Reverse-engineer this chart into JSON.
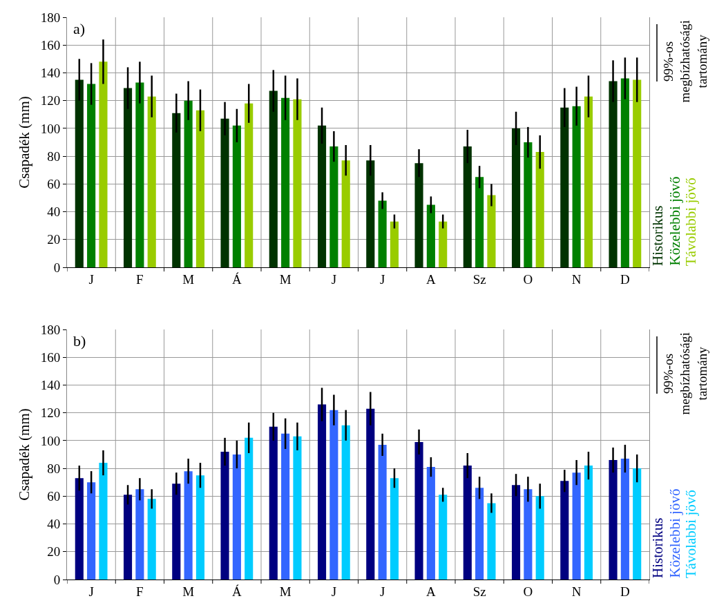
{
  "chart_data": [
    {
      "type": "bar",
      "ylabel": "Csapadék (mm)",
      "categories": [
        "J",
        "F",
        "M",
        "Á",
        "M",
        "J",
        "J",
        "A",
        "Sz",
        "O",
        "N",
        "D"
      ],
      "ylim": [
        0,
        180
      ],
      "yticks": [
        0,
        20,
        40,
        60,
        80,
        100,
        120,
        140,
        160,
        180
      ],
      "grid": true,
      "legend": "right",
      "annotations": [
        "a)",
        "99%-os megbízhatósági tartomány"
      ],
      "series": [
        {
          "name": "Historikus",
          "color": "#003300",
          "values": [
            135,
            129,
            111,
            107,
            127,
            102,
            77,
            75,
            87,
            100,
            115,
            134
          ],
          "errors": [
            15,
            15,
            14,
            12,
            15,
            13,
            11,
            10,
            12,
            12,
            14,
            15
          ]
        },
        {
          "name": "Közelebbi jövő",
          "color": "#008000",
          "values": [
            132,
            133,
            120,
            102,
            122,
            87,
            48,
            45,
            65,
            90,
            116,
            136
          ],
          "errors": [
            15,
            15,
            14,
            12,
            16,
            11,
            6,
            6,
            8,
            11,
            14,
            15
          ]
        },
        {
          "name": "Távolabbi jövő",
          "color": "#99cc00",
          "values": [
            148,
            123,
            113,
            118,
            121,
            77,
            33,
            33,
            52,
            83,
            123,
            135
          ],
          "errors": [
            16,
            15,
            15,
            14,
            15,
            11,
            5,
            5,
            8,
            12,
            15,
            16
          ]
        }
      ]
    },
    {
      "type": "bar",
      "ylabel": "Csapadék (mm)",
      "categories": [
        "J",
        "F",
        "M",
        "Á",
        "M",
        "J",
        "J",
        "A",
        "Sz",
        "O",
        "N",
        "D"
      ],
      "ylim": [
        0,
        180
      ],
      "yticks": [
        0,
        20,
        40,
        60,
        80,
        100,
        120,
        140,
        160,
        180
      ],
      "grid": true,
      "legend": "right",
      "annotations": [
        "b)",
        "99%-os megbízhatósági tartomány"
      ],
      "series": [
        {
          "name": "Historikus",
          "color": "#000080",
          "values": [
            73,
            61,
            69,
            92,
            110,
            126,
            123,
            99,
            82,
            68,
            71,
            86
          ],
          "errors": [
            9,
            7,
            8,
            10,
            10,
            12,
            12,
            9,
            9,
            8,
            8,
            9
          ]
        },
        {
          "name": "Közelebbi jövő",
          "color": "#3366ff",
          "values": [
            70,
            65,
            78,
            90,
            105,
            122,
            97,
            81,
            66,
            65,
            77,
            87
          ],
          "errors": [
            8,
            8,
            9,
            10,
            11,
            11,
            8,
            7,
            8,
            9,
            9,
            10
          ]
        },
        {
          "name": "Távolabbi jövő",
          "color": "#00ccff",
          "values": [
            84,
            58,
            75,
            102,
            103,
            111,
            73,
            61,
            55,
            60,
            82,
            80
          ],
          "errors": [
            9,
            7,
            9,
            11,
            10,
            11,
            7,
            5,
            7,
            9,
            10,
            10
          ]
        }
      ]
    }
  ]
}
